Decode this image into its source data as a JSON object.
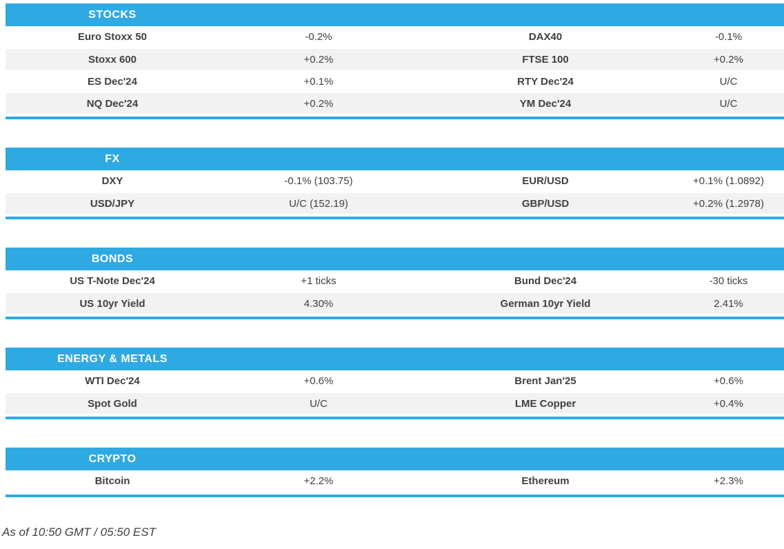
{
  "colors": {
    "accent": "#2fa9e2",
    "row_alt": "#f2f2f2",
    "text": "#404040",
    "header_text": "#ffffff"
  },
  "sections": [
    {
      "title": "STOCKS",
      "rows": [
        [
          "Euro Stoxx 50",
          "-0.2%",
          "DAX40",
          "-0.1%"
        ],
        [
          "Stoxx 600",
          "+0.2%",
          "FTSE 100",
          "+0.2%"
        ],
        [
          "ES Dec'24",
          "+0.1%",
          "RTY Dec'24",
          "U/C"
        ],
        [
          "NQ Dec'24",
          "+0.2%",
          "YM Dec'24",
          "U/C"
        ]
      ]
    },
    {
      "title": "FX",
      "rows": [
        [
          "DXY",
          "-0.1% (103.75)",
          "EUR/USD",
          "+0.1% (1.0892)"
        ],
        [
          "USD/JPY",
          "U/C (152.19)",
          "GBP/USD",
          "+0.2% (1.2978)"
        ]
      ]
    },
    {
      "title": "BONDS",
      "rows": [
        [
          "US T-Note Dec'24",
          "+1 ticks",
          "Bund Dec'24",
          "-30 ticks"
        ],
        [
          "US 10yr Yield",
          "4.30%",
          "German 10yr Yield",
          "2.41%"
        ]
      ]
    },
    {
      "title": "ENERGY & METALS",
      "rows": [
        [
          "WTI Dec'24",
          "+0.6%",
          "Brent Jan'25",
          "+0.6%"
        ],
        [
          "Spot Gold",
          "U/C",
          "LME Copper",
          "+0.4%"
        ]
      ]
    },
    {
      "title": "CRYPTO",
      "rows": [
        [
          "Bitcoin",
          "+2.2%",
          "Ethereum",
          "+2.3%"
        ]
      ]
    }
  ],
  "footer": {
    "timestamp": "As of 10:50 GMT / 05:50 EST"
  }
}
